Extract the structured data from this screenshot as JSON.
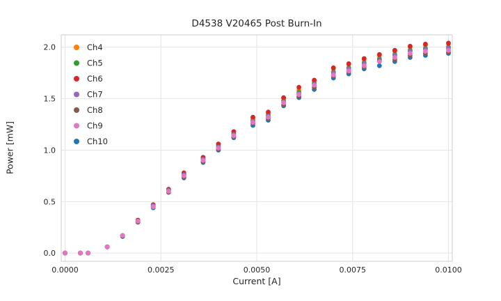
{
  "figure": {
    "background": "#ffffff"
  },
  "chart_data": {
    "type": "scatter",
    "title": "D4538 V20465 Post Burn-In",
    "xlabel": "Current [A]",
    "ylabel": "Power [mW]",
    "grid": true,
    "grid_color": "#e4e4e4",
    "axis_edge_color": "#cccccc",
    "text_color": "#262626",
    "legend_position": "upper-left",
    "xlim": [
      -0.0001,
      0.0101
    ],
    "ylim": [
      -0.08,
      2.12
    ],
    "xticks": [
      0.0,
      0.0025,
      0.005,
      0.0075,
      0.01
    ],
    "xtick_labels": [
      "0.0000",
      "0.0025",
      "0.0050",
      "0.0075",
      "0.0100"
    ],
    "yticks": [
      0.0,
      0.5,
      1.0,
      1.5,
      2.0
    ],
    "ytick_labels": [
      "0.0",
      "0.5",
      "1.0",
      "1.5",
      "2.0"
    ],
    "x": [
      0.0,
      0.0004,
      0.0006,
      0.0011,
      0.0015,
      0.0019,
      0.0023,
      0.0027,
      0.0031,
      0.0036,
      0.004,
      0.0044,
      0.0049,
      0.0053,
      0.0057,
      0.0061,
      0.0065,
      0.007,
      0.0074,
      0.0078,
      0.0082,
      0.0086,
      0.009,
      0.0094,
      0.01
    ],
    "series": [
      {
        "name": "Ch4",
        "color": "#ff7f0e",
        "y": [
          0.0,
          0.0,
          0.0,
          0.06,
          0.17,
          0.31,
          0.47,
          0.62,
          0.77,
          0.92,
          1.06,
          1.18,
          1.31,
          1.36,
          1.5,
          1.58,
          1.67,
          1.79,
          1.83,
          1.88,
          1.92,
          1.96,
          2.0,
          2.02,
          2.03
        ]
      },
      {
        "name": "Ch5",
        "color": "#2ca02c",
        "y": [
          0.0,
          0.0,
          0.0,
          0.06,
          0.17,
          0.31,
          0.46,
          0.61,
          0.76,
          0.91,
          1.04,
          1.16,
          1.29,
          1.34,
          1.48,
          1.56,
          1.65,
          1.76,
          1.8,
          1.85,
          1.89,
          1.93,
          1.97,
          1.99,
          2.0
        ]
      },
      {
        "name": "Ch6",
        "color": "#d62728",
        "y": [
          0.0,
          0.0,
          0.0,
          0.06,
          0.17,
          0.32,
          0.47,
          0.62,
          0.78,
          0.93,
          1.06,
          1.18,
          1.32,
          1.37,
          1.51,
          1.61,
          1.68,
          1.8,
          1.84,
          1.89,
          1.93,
          1.97,
          2.01,
          2.03,
          2.04
        ]
      },
      {
        "name": "Ch7",
        "color": "#9467bd",
        "y": [
          0.0,
          0.0,
          0.0,
          0.06,
          0.17,
          0.31,
          0.46,
          0.61,
          0.76,
          0.91,
          1.03,
          1.15,
          1.28,
          1.33,
          1.47,
          1.55,
          1.64,
          1.75,
          1.79,
          1.84,
          1.88,
          1.92,
          1.96,
          1.98,
          1.99
        ]
      },
      {
        "name": "Ch8",
        "color": "#8c564b",
        "y": [
          0.0,
          0.0,
          0.0,
          0.06,
          0.17,
          0.3,
          0.45,
          0.59,
          0.74,
          0.89,
          1.01,
          1.13,
          1.26,
          1.31,
          1.44,
          1.52,
          1.61,
          1.72,
          1.76,
          1.81,
          1.87,
          1.88,
          1.92,
          1.94,
          1.95
        ]
      },
      {
        "name": "Ch9",
        "color": "#e377c2",
        "y": [
          0.0,
          0.0,
          0.0,
          0.06,
          0.17,
          0.31,
          0.45,
          0.6,
          0.75,
          0.9,
          1.02,
          1.14,
          1.27,
          1.32,
          1.46,
          1.54,
          1.63,
          1.73,
          1.77,
          1.82,
          1.86,
          1.9,
          1.94,
          1.96,
          1.97
        ]
      },
      {
        "name": "Ch10",
        "color": "#1f77b4",
        "y": [
          0.0,
          0.0,
          0.0,
          0.06,
          0.16,
          0.3,
          0.44,
          0.59,
          0.73,
          0.88,
          1.0,
          1.12,
          1.24,
          1.29,
          1.43,
          1.51,
          1.59,
          1.7,
          1.74,
          1.79,
          1.82,
          1.86,
          1.9,
          1.92,
          1.94
        ]
      }
    ]
  }
}
